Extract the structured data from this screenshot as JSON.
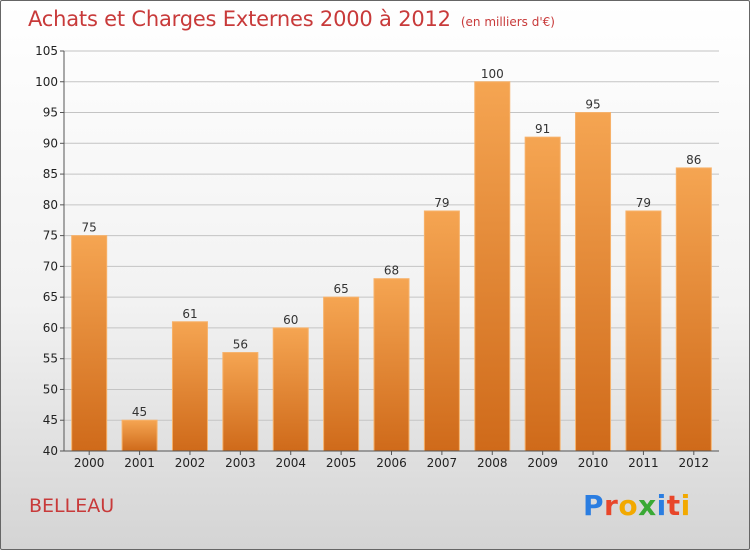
{
  "header": {
    "title": "Achats et Charges Externes 2000 à 2012",
    "subtitle": "(en milliers d'€)"
  },
  "footer": {
    "city": "BELLEAU",
    "brand": [
      {
        "ch": "P",
        "color": "#2a7de1"
      },
      {
        "ch": "r",
        "color": "#e8462a"
      },
      {
        "ch": "o",
        "color": "#f2a900"
      },
      {
        "ch": "x",
        "color": "#3aa935"
      },
      {
        "ch": "i",
        "color": "#2a7de1"
      },
      {
        "ch": "t",
        "color": "#e8462a"
      },
      {
        "ch": "i",
        "color": "#f2a900"
      }
    ]
  },
  "chart_data": {
    "type": "bar",
    "categories": [
      "2000",
      "2001",
      "2002",
      "2003",
      "2004",
      "2005",
      "2006",
      "2007",
      "2008",
      "2009",
      "2010",
      "2011",
      "2012"
    ],
    "values": [
      75,
      45,
      61,
      56,
      60,
      65,
      68,
      79,
      100,
      91,
      95,
      79,
      86
    ],
    "title": "Achats et Charges Externes 2000 à 2012",
    "subtitle": "(en milliers d'€)",
    "xlabel": "",
    "ylabel": "",
    "ylim": [
      40,
      105
    ],
    "yticks": [
      40,
      45,
      50,
      55,
      60,
      65,
      70,
      75,
      80,
      85,
      90,
      95,
      100,
      105
    ],
    "grid": true,
    "bar_color": "#f0923a",
    "title_color": "#c83a3a"
  }
}
